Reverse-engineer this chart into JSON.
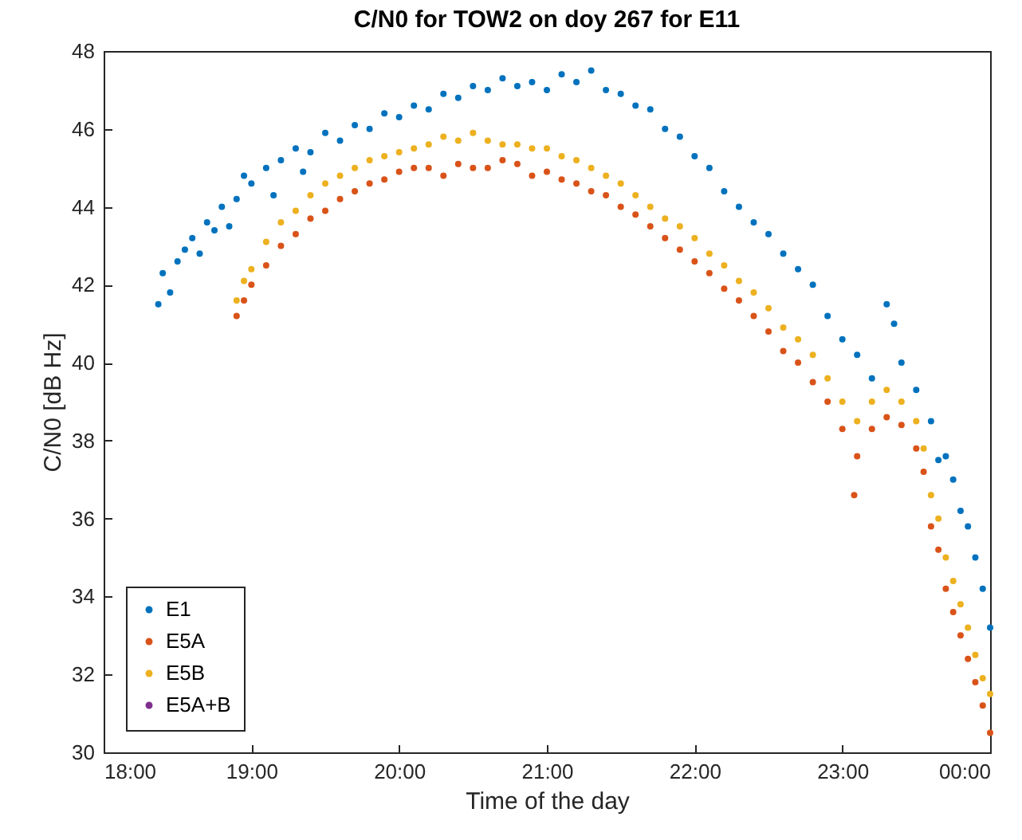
{
  "chart_data": {
    "type": "scatter",
    "title": "C/N0 for TOW2 on doy 267 for E11",
    "xlabel": "Time of the day",
    "ylabel": "C/N0 [dB Hz]",
    "xlim": [
      18,
      24
    ],
    "xticks": [
      {
        "value": 18,
        "label": "18:00"
      },
      {
        "value": 19,
        "label": "19:00"
      },
      {
        "value": 20,
        "label": "20:00"
      },
      {
        "value": 21,
        "label": "21:00"
      },
      {
        "value": 22,
        "label": "22:00"
      },
      {
        "value": 23,
        "label": "23:00"
      },
      {
        "value": 24,
        "label": "00:00"
      }
    ],
    "ylim": [
      30,
      48
    ],
    "yticks": [
      30,
      32,
      34,
      36,
      38,
      40,
      42,
      44,
      46,
      48
    ],
    "legend": "bottom left",
    "marker": "circle",
    "series": [
      {
        "name": "E1",
        "color": "#0072bd",
        "x": [
          18.37,
          18.4,
          18.45,
          18.5,
          18.55,
          18.6,
          18.65,
          18.7,
          18.75,
          18.8,
          18.85,
          18.9,
          18.95,
          19.0,
          19.1,
          19.15,
          19.2,
          19.3,
          19.35,
          19.4,
          19.5,
          19.6,
          19.7,
          19.8,
          19.9,
          20.0,
          20.1,
          20.2,
          20.3,
          20.4,
          20.5,
          20.6,
          20.7,
          20.8,
          20.9,
          21.0,
          21.1,
          21.2,
          21.3,
          21.4,
          21.5,
          21.6,
          21.7,
          21.8,
          21.9,
          22.0,
          22.1,
          22.2,
          22.3,
          22.4,
          22.5,
          22.6,
          22.7,
          22.8,
          22.9,
          23.0,
          23.1,
          23.2,
          23.3,
          23.35,
          23.4,
          23.5,
          23.6,
          23.65,
          23.7,
          23.75,
          23.8,
          23.85,
          23.9,
          23.95,
          24.0
        ],
        "values": [
          41.5,
          42.3,
          41.8,
          42.6,
          42.9,
          43.2,
          42.8,
          43.6,
          43.4,
          44.0,
          43.5,
          44.2,
          44.8,
          44.6,
          45.0,
          44.3,
          45.2,
          45.5,
          44.9,
          45.4,
          45.9,
          45.7,
          46.1,
          46.0,
          46.4,
          46.3,
          46.6,
          46.5,
          46.9,
          46.8,
          47.1,
          47.0,
          47.3,
          47.1,
          47.2,
          47.0,
          47.4,
          47.2,
          47.5,
          47.0,
          46.9,
          46.6,
          46.5,
          46.0,
          45.8,
          45.3,
          45.0,
          44.4,
          44.0,
          43.6,
          43.3,
          42.8,
          42.4,
          42.0,
          41.2,
          40.6,
          40.2,
          39.6,
          41.5,
          41.0,
          40.0,
          39.3,
          38.5,
          37.5,
          37.6,
          37.0,
          36.2,
          35.8,
          35.0,
          34.2,
          33.2
        ]
      },
      {
        "name": "E5A",
        "color": "#d95319",
        "x": [
          18.9,
          18.95,
          19.0,
          19.1,
          19.2,
          19.3,
          19.4,
          19.5,
          19.6,
          19.7,
          19.8,
          19.9,
          20.0,
          20.1,
          20.2,
          20.3,
          20.4,
          20.5,
          20.6,
          20.7,
          20.8,
          20.9,
          21.0,
          21.1,
          21.2,
          21.3,
          21.4,
          21.5,
          21.6,
          21.7,
          21.8,
          21.9,
          22.0,
          22.1,
          22.2,
          22.3,
          22.4,
          22.5,
          22.6,
          22.7,
          22.8,
          22.9,
          23.0,
          23.08,
          23.1,
          23.2,
          23.3,
          23.4,
          23.5,
          23.55,
          23.6,
          23.65,
          23.7,
          23.75,
          23.8,
          23.85,
          23.9,
          23.95,
          24.0
        ],
        "values": [
          41.2,
          41.6,
          42.0,
          42.5,
          43.0,
          43.3,
          43.7,
          43.9,
          44.2,
          44.4,
          44.6,
          44.7,
          44.9,
          45.0,
          45.0,
          44.8,
          45.1,
          45.0,
          45.0,
          45.2,
          45.1,
          44.8,
          44.9,
          44.7,
          44.6,
          44.4,
          44.3,
          44.0,
          43.8,
          43.5,
          43.2,
          42.9,
          42.6,
          42.3,
          41.9,
          41.6,
          41.2,
          40.8,
          40.3,
          40.0,
          39.5,
          39.0,
          38.3,
          36.6,
          37.6,
          38.3,
          38.6,
          38.4,
          37.8,
          37.2,
          35.8,
          35.2,
          34.2,
          33.6,
          33.0,
          32.4,
          31.8,
          31.2,
          30.5
        ]
      },
      {
        "name": "E5B",
        "color": "#edb120",
        "x": [
          18.9,
          18.95,
          19.0,
          19.1,
          19.2,
          19.3,
          19.4,
          19.5,
          19.6,
          19.7,
          19.8,
          19.9,
          20.0,
          20.1,
          20.2,
          20.3,
          20.4,
          20.5,
          20.6,
          20.7,
          20.8,
          20.9,
          21.0,
          21.1,
          21.2,
          21.3,
          21.4,
          21.5,
          21.6,
          21.7,
          21.8,
          21.9,
          22.0,
          22.1,
          22.2,
          22.3,
          22.4,
          22.5,
          22.6,
          22.7,
          22.8,
          22.9,
          23.0,
          23.1,
          23.2,
          23.3,
          23.4,
          23.5,
          23.55,
          23.6,
          23.65,
          23.7,
          23.75,
          23.8,
          23.85,
          23.9,
          23.95,
          24.0
        ],
        "values": [
          41.6,
          42.1,
          42.4,
          43.1,
          43.6,
          43.9,
          44.3,
          44.6,
          44.8,
          45.0,
          45.2,
          45.3,
          45.4,
          45.5,
          45.6,
          45.8,
          45.7,
          45.9,
          45.7,
          45.6,
          45.6,
          45.5,
          45.5,
          45.3,
          45.2,
          45.0,
          44.8,
          44.6,
          44.3,
          44.0,
          43.7,
          43.5,
          43.2,
          42.8,
          42.5,
          42.1,
          41.8,
          41.4,
          40.9,
          40.6,
          40.2,
          39.6,
          39.0,
          38.5,
          39.0,
          39.3,
          39.0,
          38.5,
          37.8,
          36.6,
          36.0,
          35.0,
          34.4,
          33.8,
          33.2,
          32.5,
          31.9,
          31.5
        ]
      },
      {
        "name": "E5A+B",
        "color": "#7e2f8e"
      }
    ]
  }
}
